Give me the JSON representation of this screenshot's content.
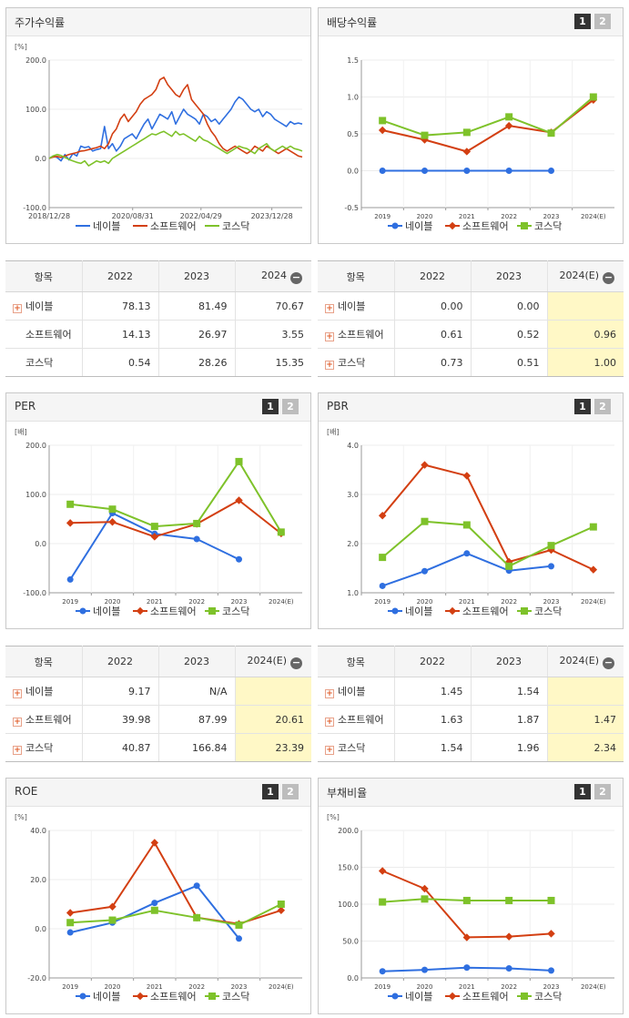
{
  "legend": [
    "네이블",
    "소프트웨어",
    "코스닥"
  ],
  "colors": {
    "s0": "#2f6fe0",
    "s1": "#d33f12",
    "s2": "#7ec22a"
  },
  "panels": {
    "price": {
      "title": "주가수익률",
      "unit": "[%]"
    },
    "dividend": {
      "title": "배당수익률",
      "unit": "",
      "page1": "1",
      "page2": "2"
    },
    "per": {
      "title": "PER",
      "unit": "[배]",
      "page1": "1",
      "page2": "2"
    },
    "pbr": {
      "title": "PBR",
      "unit": "[배]",
      "page1": "1",
      "page2": "2"
    },
    "roe": {
      "title": "ROE",
      "unit": "[%]",
      "page1": "1",
      "page2": "2"
    },
    "debt": {
      "title": "부채비율",
      "unit": "[%]",
      "page1": "1",
      "page2": "2"
    }
  },
  "tables": {
    "price": {
      "headers": [
        "항목",
        "2022",
        "2023",
        "2024"
      ],
      "rows": [
        {
          "name": "네이블",
          "plus": true,
          "v": [
            "78.13",
            "81.49",
            "70.67"
          ]
        },
        {
          "name": "소프트웨어",
          "plus": false,
          "v": [
            "14.13",
            "26.97",
            "3.55"
          ]
        },
        {
          "name": "코스닥",
          "plus": false,
          "v": [
            "0.54",
            "28.26",
            "15.35"
          ]
        }
      ]
    },
    "dividend": {
      "headers": [
        "항목",
        "2022",
        "2023",
        "2024(E)"
      ],
      "rows": [
        {
          "name": "네이블",
          "plus": true,
          "v": [
            "0.00",
            "0.00",
            ""
          ]
        },
        {
          "name": "소프트웨어",
          "plus": true,
          "v": [
            "0.61",
            "0.52",
            "0.96"
          ]
        },
        {
          "name": "코스닥",
          "plus": true,
          "v": [
            "0.73",
            "0.51",
            "1.00"
          ]
        }
      ]
    },
    "per": {
      "headers": [
        "항목",
        "2022",
        "2023",
        "2024(E)"
      ],
      "rows": [
        {
          "name": "네이블",
          "plus": true,
          "v": [
            "9.17",
            "N/A",
            ""
          ]
        },
        {
          "name": "소프트웨어",
          "plus": true,
          "v": [
            "39.98",
            "87.99",
            "20.61"
          ]
        },
        {
          "name": "코스닥",
          "plus": true,
          "v": [
            "40.87",
            "166.84",
            "23.39"
          ]
        }
      ]
    },
    "pbr": {
      "headers": [
        "항목",
        "2022",
        "2023",
        "2024(E)"
      ],
      "rows": [
        {
          "name": "네이블",
          "plus": true,
          "v": [
            "1.45",
            "1.54",
            ""
          ]
        },
        {
          "name": "소프트웨어",
          "plus": true,
          "v": [
            "1.63",
            "1.87",
            "1.47"
          ]
        },
        {
          "name": "코스닥",
          "plus": true,
          "v": [
            "1.54",
            "1.96",
            "2.34"
          ]
        }
      ]
    }
  },
  "chart_data": [
    {
      "id": "price",
      "type": "line",
      "x_ticks": [
        "2018/12/28",
        "2020/08/31",
        "2022/04/29",
        "2023/12/28"
      ],
      "x_tick_pos": [
        0,
        0.33,
        0.6,
        0.88
      ],
      "ylim": [
        -100,
        200
      ],
      "y_ticks": [
        200,
        100,
        0,
        -100
      ],
      "y_tick_labels": [
        "200.0",
        "100.0",
        "0.0",
        "-100.0"
      ],
      "series": [
        {
          "name": "네이블",
          "values": [
            0,
            5,
            2,
            -5,
            8,
            -3,
            10,
            5,
            25,
            22,
            24,
            15,
            18,
            20,
            65,
            20,
            30,
            15,
            25,
            40,
            45,
            50,
            40,
            55,
            70,
            80,
            60,
            75,
            90,
            85,
            80,
            95,
            70,
            85,
            100,
            90,
            85,
            80,
            70,
            90,
            85,
            75,
            80,
            70,
            80,
            90,
            100,
            115,
            125,
            120,
            110,
            100,
            95,
            100,
            85,
            95,
            90,
            80,
            75,
            70,
            65,
            75,
            70,
            72,
            70
          ]
        },
        {
          "name": "소프트웨어",
          "values": [
            0,
            3,
            4,
            2,
            5,
            8,
            10,
            12,
            15,
            16,
            18,
            20,
            22,
            25,
            20,
            30,
            50,
            60,
            80,
            90,
            75,
            85,
            95,
            110,
            120,
            125,
            130,
            140,
            160,
            165,
            150,
            140,
            130,
            125,
            140,
            150,
            120,
            110,
            100,
            90,
            70,
            55,
            45,
            30,
            20,
            15,
            20,
            25,
            20,
            15,
            10,
            15,
            25,
            20,
            15,
            25,
            20,
            15,
            10,
            15,
            20,
            15,
            10,
            5,
            3
          ]
        },
        {
          "name": "코스닥",
          "values": [
            0,
            5,
            8,
            6,
            2,
            -2,
            -5,
            -8,
            -10,
            -5,
            -15,
            -10,
            -5,
            -8,
            -5,
            -10,
            0,
            5,
            10,
            15,
            20,
            25,
            30,
            35,
            40,
            45,
            50,
            48,
            52,
            55,
            50,
            45,
            55,
            48,
            50,
            45,
            40,
            35,
            45,
            38,
            35,
            30,
            25,
            20,
            15,
            10,
            15,
            20,
            25,
            22,
            20,
            15,
            10,
            20,
            25,
            30,
            20,
            15,
            20,
            25,
            20,
            25,
            20,
            18,
            15
          ]
        }
      ]
    },
    {
      "id": "dividend",
      "type": "line",
      "categories": [
        "2019",
        "2020",
        "2021",
        "2022",
        "2023",
        "2024(E)"
      ],
      "ylim": [
        -0.5,
        1.5
      ],
      "y_ticks": [
        1.5,
        1.0,
        0.5,
        0.0,
        -0.5
      ],
      "y_tick_labels": [
        "1.5",
        "1.0",
        "0.5",
        "0.0",
        "-0.5"
      ],
      "series": [
        {
          "name": "네이블",
          "values": [
            0.0,
            0.0,
            0.0,
            0.0,
            0.0,
            null
          ]
        },
        {
          "name": "소프트웨어",
          "values": [
            0.55,
            0.42,
            0.26,
            0.61,
            0.52,
            0.96
          ]
        },
        {
          "name": "코스닥",
          "values": [
            0.68,
            0.48,
            0.52,
            0.73,
            0.51,
            1.0
          ]
        }
      ]
    },
    {
      "id": "per",
      "type": "line",
      "categories": [
        "2019",
        "2020",
        "2021",
        "2022",
        "2023",
        "2024(E)"
      ],
      "ylim": [
        -100,
        200
      ],
      "y_ticks": [
        200,
        100,
        0,
        -100
      ],
      "y_tick_labels": [
        "200.0",
        "100.0",
        "0.0",
        "-100.0"
      ],
      "series": [
        {
          "name": "네이블",
          "values": [
            -73,
            62,
            20,
            9.17,
            -32,
            null
          ]
        },
        {
          "name": "소프트웨어",
          "values": [
            42,
            44,
            14,
            39.98,
            87.99,
            20.61
          ]
        },
        {
          "name": "코스닥",
          "values": [
            80,
            70,
            35,
            40.87,
            166.84,
            23.39
          ]
        }
      ]
    },
    {
      "id": "pbr",
      "type": "line",
      "categories": [
        "2019",
        "2020",
        "2021",
        "2022",
        "2023",
        "2024(E)"
      ],
      "ylim": [
        1.0,
        4.0
      ],
      "y_ticks": [
        4.0,
        3.0,
        2.0,
        1.0
      ],
      "y_tick_labels": [
        "4.0",
        "3.0",
        "2.0",
        "1.0"
      ],
      "series": [
        {
          "name": "네이블",
          "values": [
            1.14,
            1.44,
            1.8,
            1.45,
            1.54,
            null
          ]
        },
        {
          "name": "소프트웨어",
          "values": [
            2.57,
            3.6,
            3.38,
            1.63,
            1.87,
            1.47
          ]
        },
        {
          "name": "코스닥",
          "values": [
            1.72,
            2.45,
            2.38,
            1.54,
            1.96,
            2.34
          ]
        }
      ]
    },
    {
      "id": "roe",
      "type": "line",
      "categories": [
        "2019",
        "2020",
        "2021",
        "2022",
        "2023",
        "2024(E)"
      ],
      "ylim": [
        -20,
        40
      ],
      "y_ticks": [
        40,
        20,
        0,
        -20
      ],
      "y_tick_labels": [
        "40.0",
        "20.0",
        "0.0",
        "-20.0"
      ],
      "series": [
        {
          "name": "네이블",
          "values": [
            -1.5,
            2.5,
            10.5,
            17.5,
            -4,
            null
          ]
        },
        {
          "name": "소프트웨어",
          "values": [
            6.5,
            9,
            35,
            4.5,
            2,
            7.5
          ]
        },
        {
          "name": "코스닥",
          "values": [
            2.5,
            3.5,
            7.5,
            4.5,
            1.5,
            10
          ]
        }
      ]
    },
    {
      "id": "debt",
      "type": "line",
      "categories": [
        "2019",
        "2020",
        "2021",
        "2022",
        "2023",
        "2024(E)"
      ],
      "ylim": [
        0,
        200
      ],
      "y_ticks": [
        200,
        150,
        100,
        50,
        0
      ],
      "y_tick_labels": [
        "200.0",
        "150.0",
        "100.0",
        "50.0",
        "0.0"
      ],
      "series": [
        {
          "name": "네이블",
          "values": [
            9,
            11,
            14,
            13,
            10,
            null
          ]
        },
        {
          "name": "소프트웨어",
          "values": [
            145,
            121,
            55,
            56,
            60,
            null
          ]
        },
        {
          "name": "코스닥",
          "values": [
            103,
            107,
            105,
            105,
            105,
            null
          ]
        }
      ]
    }
  ]
}
